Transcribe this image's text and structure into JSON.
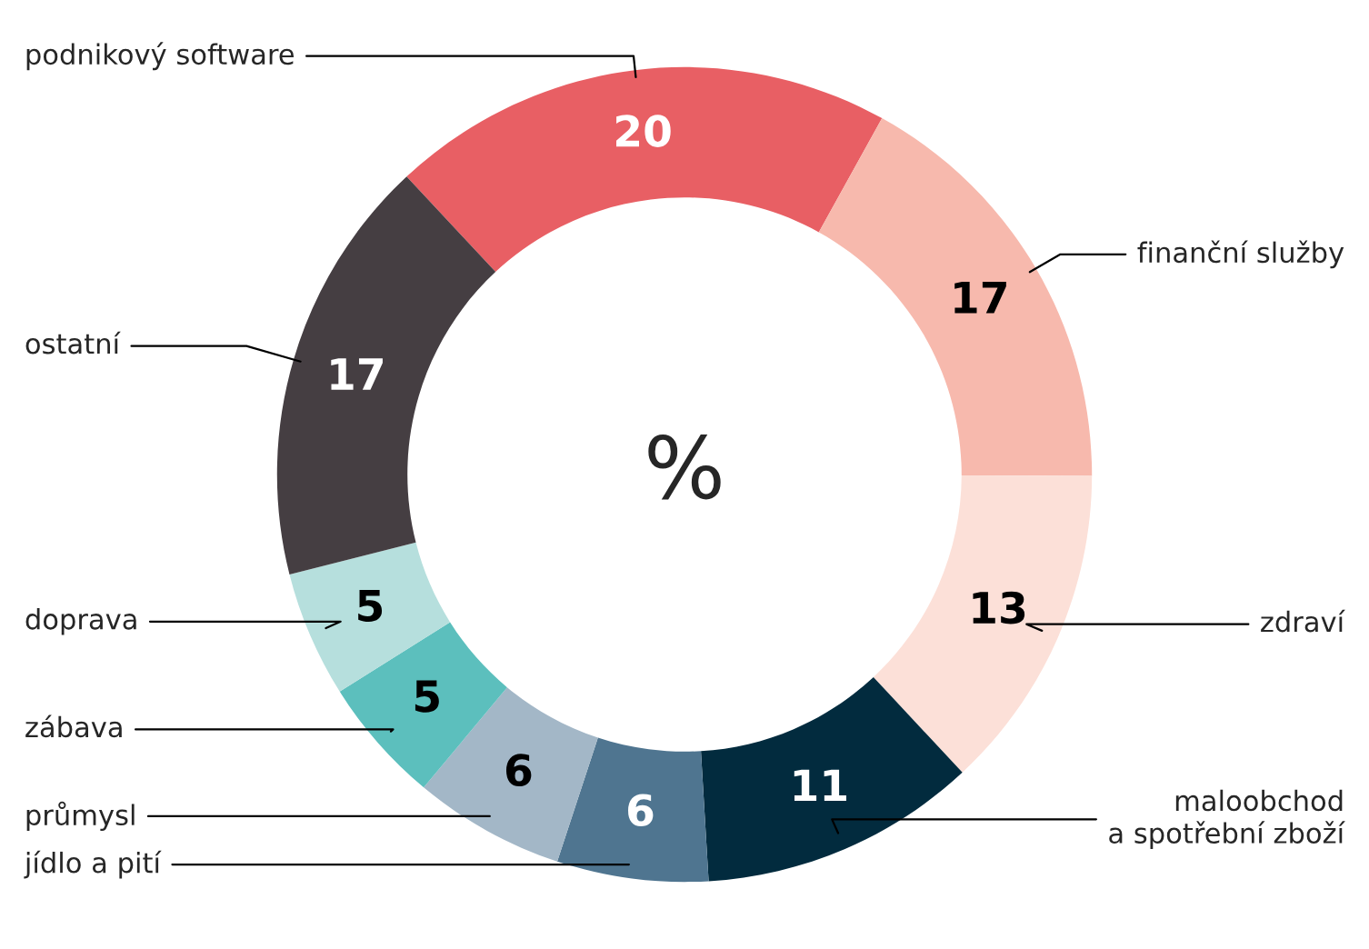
{
  "chart_data": {
    "type": "donut",
    "categories": [
      "podnikový software",
      "finanční služby",
      "zdraví",
      "maloobchod\na spotřební zboží",
      "jídlo a pití",
      "průmysl",
      "zábava",
      "doprava",
      "ostatní"
    ],
    "values": [
      20,
      17,
      13,
      11,
      6,
      6,
      5,
      5,
      17
    ],
    "colors": [
      "#e85f64",
      "#f7b9ad",
      "#fce0d8",
      "#022b3e",
      "#4f7590",
      "#a3b7c7",
      "#5cbfbd",
      "#b6dfdd",
      "#453e42"
    ],
    "data_labels": true,
    "annotations": [
      "%"
    ],
    "legend": false
  }
}
